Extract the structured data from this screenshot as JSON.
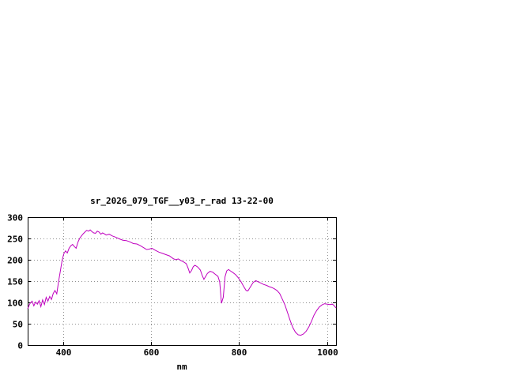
{
  "window": {
    "background": "#ffffff"
  },
  "chart_data": {
    "type": "line",
    "title": "sr_2026_079_TGF__y03_r_rad 13-22-00",
    "xlabel": "nm",
    "ylabel": "",
    "xlim": [
      320,
      1020
    ],
    "ylim": [
      0,
      300
    ],
    "x_ticks": [
      400,
      600,
      800,
      1000
    ],
    "y_ticks": [
      0,
      50,
      100,
      150,
      200,
      250,
      300
    ],
    "grid": true,
    "legend": "none",
    "line_color": "#bf00bf",
    "axis_color": "#000000",
    "grid_color": "#909090",
    "series": [
      {
        "name": "sr_2026_079_TGF__y03_r_rad",
        "x": [
          320,
          325,
          330,
          334,
          338,
          342,
          346,
          350,
          354,
          358,
          362,
          366,
          370,
          374,
          378,
          382,
          386,
          390,
          394,
          398,
          402,
          406,
          410,
          414,
          418,
          422,
          426,
          430,
          434,
          438,
          442,
          446,
          450,
          454,
          458,
          462,
          466,
          470,
          474,
          478,
          482,
          486,
          490,
          494,
          498,
          505,
          512,
          520,
          528,
          536,
          544,
          552,
          560,
          568,
          576,
          584,
          590,
          596,
          602,
          610,
          618,
          626,
          634,
          642,
          650,
          656,
          662,
          668,
          674,
          680,
          684,
          688,
          692,
          696,
          700,
          706,
          712,
          716,
          720,
          724,
          728,
          734,
          740,
          746,
          752,
          756,
          760,
          764,
          768,
          772,
          776,
          780,
          786,
          792,
          798,
          804,
          810,
          816,
          820,
          826,
          832,
          838,
          844,
          850,
          856,
          862,
          868,
          874,
          880,
          886,
          892,
          898,
          904,
          910,
          916,
          922,
          928,
          934,
          940,
          946,
          952,
          958,
          964,
          970,
          976,
          982,
          988,
          994,
          1000,
          1006,
          1012,
          1016,
          1020
        ],
        "y": [
          85,
          97,
          103,
          92,
          101,
          96,
          104,
          90,
          106,
          95,
          112,
          103,
          114,
          107,
          121,
          128,
          120,
          148,
          172,
          198,
          214,
          221,
          216,
          227,
          233,
          236,
          231,
          227,
          241,
          250,
          256,
          261,
          265,
          269,
          267,
          270,
          266,
          263,
          262,
          267,
          265,
          260,
          263,
          261,
          258,
          260,
          256,
          253,
          249,
          246,
          245,
          242,
          238,
          237,
          233,
          228,
          224,
          225,
          227,
          222,
          218,
          215,
          212,
          209,
          203,
          200,
          202,
          198,
          195,
          191,
          181,
          169,
          175,
          184,
          187,
          183,
          176,
          164,
          154,
          161,
          168,
          173,
          171,
          166,
          161,
          148,
          98,
          112,
          160,
          174,
          177,
          174,
          170,
          165,
          158,
          149,
          138,
          128,
          127,
          137,
          147,
          151,
          148,
          145,
          142,
          140,
          137,
          135,
          132,
          128,
          121,
          108,
          94,
          76,
          57,
          41,
          30,
          24,
          23,
          26,
          32,
          42,
          55,
          70,
          81,
          89,
          94,
          97,
          96,
          95,
          96,
          92,
          87
        ]
      }
    ]
  }
}
